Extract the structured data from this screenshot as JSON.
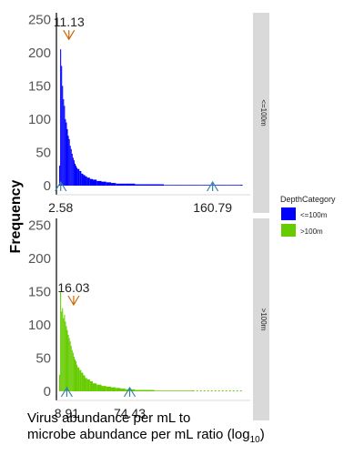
{
  "chart_data": {
    "type": "histogram",
    "ylabel": "Frequency",
    "xlabel_line1": "Virus abundance per mL to",
    "xlabel_line2": "microbe abundance per mL ratio (log",
    "xlabel_sub": "10",
    "xlabel_close": ")",
    "y_ticks": [
      "0",
      "50",
      "100",
      "150",
      "200",
      "250"
    ],
    "ylim": [
      0,
      260
    ],
    "xlim": [
      0,
      200
    ],
    "legend": {
      "title": "DepthCategory",
      "position": "right",
      "entries": [
        {
          "label": "<=100m",
          "color": "#0000ff"
        },
        {
          "label": ">100m",
          "color": "#66cc00"
        }
      ]
    },
    "panels": [
      {
        "strip": "<=100m",
        "color": "#0000ff",
        "annotations": [
          {
            "text": "11.13",
            "x": 11.13,
            "y": 220,
            "arrow_color": "#cc6600",
            "pos": "top"
          },
          {
            "text": "2.58",
            "x": 2.58,
            "arrow_color": "#3a7fa8",
            "pos": "bottom"
          },
          {
            "text": "160.79",
            "x": 160.79,
            "arrow_color": "#3a7fa8",
            "pos": "bottom"
          }
        ],
        "bins_x": [
          1,
          2,
          3,
          4,
          5,
          6,
          7,
          8,
          9,
          10,
          11,
          12,
          13,
          14,
          15,
          16,
          17,
          18,
          19,
          20,
          22,
          24,
          26,
          28,
          30,
          33,
          36,
          40,
          45,
          50,
          55,
          60,
          70,
          80,
          90,
          100,
          110,
          120,
          135,
          150,
          160,
          175,
          190
        ],
        "bins_y": [
          30,
          205,
          180,
          150,
          130,
          120,
          100,
          95,
          85,
          75,
          70,
          60,
          55,
          48,
          42,
          38,
          33,
          30,
          27,
          25,
          22,
          18,
          16,
          14,
          12,
          10,
          9,
          7,
          6,
          5,
          4,
          3,
          3,
          2,
          2,
          2,
          1,
          1,
          1,
          1,
          1,
          1,
          1
        ]
      },
      {
        "strip": ">100m",
        "color": "#66cc00",
        "annotations": [
          {
            "text": "16.03",
            "x": 16.03,
            "y": 130,
            "arrow_color": "#cc6600",
            "pos": "top"
          },
          {
            "text": "8.91",
            "x": 8.91,
            "arrow_color": "#3a7fa8",
            "pos": "bottom"
          },
          {
            "text": "74.43",
            "x": 74.43,
            "arrow_color": "#3a7fa8",
            "pos": "bottom"
          }
        ],
        "bins_x": [
          1,
          2,
          3,
          4,
          5,
          6,
          7,
          8,
          9,
          10,
          11,
          12,
          13,
          14,
          15,
          16,
          17,
          18,
          19,
          20,
          22,
          24,
          26,
          28,
          30,
          33,
          36,
          40,
          45,
          50,
          55,
          60,
          65,
          70,
          75,
          80,
          90,
          100,
          110,
          120,
          140
        ],
        "bins_y": [
          25,
          150,
          120,
          125,
          110,
          115,
          105,
          98,
          92,
          85,
          80,
          75,
          68,
          62,
          58,
          52,
          48,
          45,
          40,
          36,
          32,
          28,
          24,
          20,
          18,
          15,
          12,
          10,
          8,
          7,
          6,
          5,
          4,
          3,
          3,
          2,
          2,
          1,
          1,
          1,
          1
        ]
      }
    ]
  }
}
